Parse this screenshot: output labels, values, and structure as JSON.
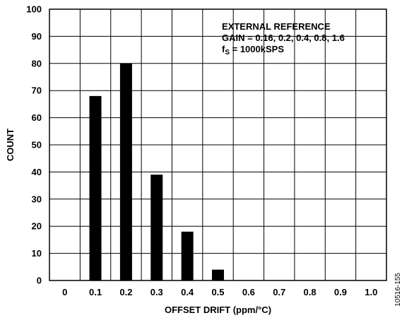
{
  "chart_data": {
    "type": "bar",
    "categories": [
      "0",
      "0.1",
      "0.2",
      "0.3",
      "0.4",
      "0.5",
      "0.6",
      "0.7",
      "0.8",
      "0.9",
      "1.0"
    ],
    "values": [
      0,
      68,
      80,
      39,
      18,
      4,
      0,
      0,
      0,
      0,
      0
    ],
    "xlabel": "OFFSET DRIFT (ppm/°C)",
    "ylabel": "COUNT",
    "ylim": [
      0,
      100
    ],
    "yticks": [
      "0",
      "10",
      "20",
      "30",
      "40",
      "50",
      "60",
      "70",
      "80",
      "90",
      "100"
    ],
    "grid": true,
    "legend": "none",
    "bar_color": "#000000",
    "annotations": {
      "line1": "EXTERNAL REFERENCE",
      "line2": "GAIN = 0.16, 0.2, 0.4, 0.8, 1.6",
      "line3_main": "f",
      "line3_sub": "S",
      "line3_rest": " = 1000kSPS"
    },
    "figure_id": "10516-155"
  }
}
